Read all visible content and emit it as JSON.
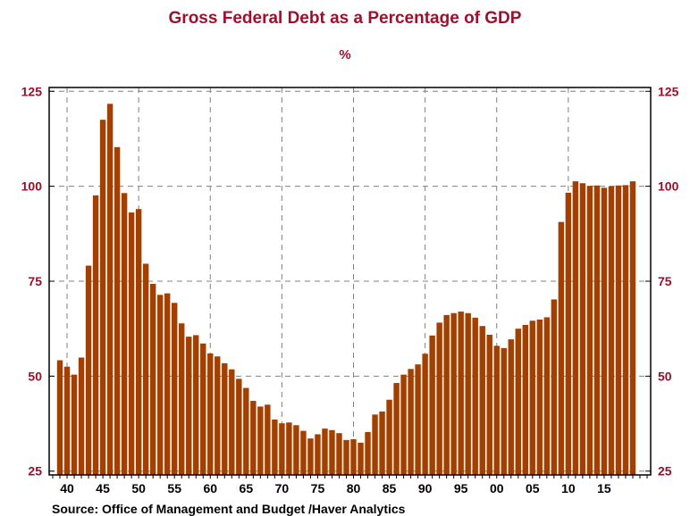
{
  "chart_data": {
    "type": "bar",
    "title": "Gross Federal Debt as a Percentage of GDP",
    "unit_label": "%",
    "source": "Source:  Office of Management and Budget /Haver Analytics",
    "bar_color": "#a33f00",
    "title_color": "#a0102e",
    "ylim": [
      24,
      126
    ],
    "yticks": [
      25,
      50,
      75,
      100,
      125
    ],
    "x_tick_labels": [
      "40",
      "45",
      "50",
      "55",
      "60",
      "65",
      "70",
      "75",
      "80",
      "85",
      "90",
      "95",
      "00",
      "05",
      "10",
      "15"
    ],
    "x_tick_years": [
      1940,
      1945,
      1950,
      1955,
      1960,
      1965,
      1970,
      1975,
      1980,
      1985,
      1990,
      1995,
      2000,
      2005,
      2010,
      2015
    ],
    "grid": true,
    "categories": [
      1939,
      1940,
      1941,
      1942,
      1943,
      1944,
      1945,
      1946,
      1947,
      1948,
      1949,
      1950,
      1951,
      1952,
      1953,
      1954,
      1955,
      1956,
      1957,
      1958,
      1959,
      1960,
      1961,
      1962,
      1963,
      1964,
      1965,
      1966,
      1967,
      1968,
      1969,
      1970,
      1971,
      1972,
      1973,
      1974,
      1975,
      1976,
      1977,
      1978,
      1979,
      1980,
      1981,
      1982,
      1983,
      1984,
      1985,
      1986,
      1987,
      1988,
      1989,
      1990,
      1991,
      1992,
      1993,
      1994,
      1995,
      1996,
      1997,
      1998,
      1999,
      2000,
      2001,
      2002,
      2003,
      2004,
      2005,
      2006,
      2007,
      2008,
      2009,
      2010,
      2011,
      2012,
      2013,
      2014,
      2015,
      2016,
      2017,
      2018,
      2019
    ],
    "values": [
      54.2,
      52.5,
      50.4,
      54.9,
      79.1,
      97.6,
      117.5,
      121.7,
      110.3,
      98.2,
      93.1,
      94.0,
      79.6,
      74.3,
      71.4,
      71.8,
      69.3,
      63.9,
      60.4,
      60.8,
      58.6,
      56.0,
      55.2,
      53.4,
      51.8,
      49.3,
      46.9,
      43.5,
      42.0,
      42.5,
      38.6,
      37.6,
      37.8,
      37.1,
      35.6,
      33.6,
      34.7,
      36.2,
      35.8,
      35.0,
      33.2,
      33.4,
      32.5,
      35.3,
      39.9,
      40.7,
      43.8,
      48.2,
      50.4,
      51.9,
      53.1,
      55.9,
      60.7,
      64.1,
      66.1,
      66.6,
      67.0,
      66.6,
      65.4,
      63.2,
      60.9,
      58.0,
      57.4,
      59.7,
      62.5,
      63.5,
      64.6,
      64.9,
      65.5,
      70.2,
      90.6,
      98.3,
      101.3,
      100.8,
      100.1,
      100.2,
      99.6,
      100.0,
      100.2,
      100.3,
      101.3
    ]
  }
}
